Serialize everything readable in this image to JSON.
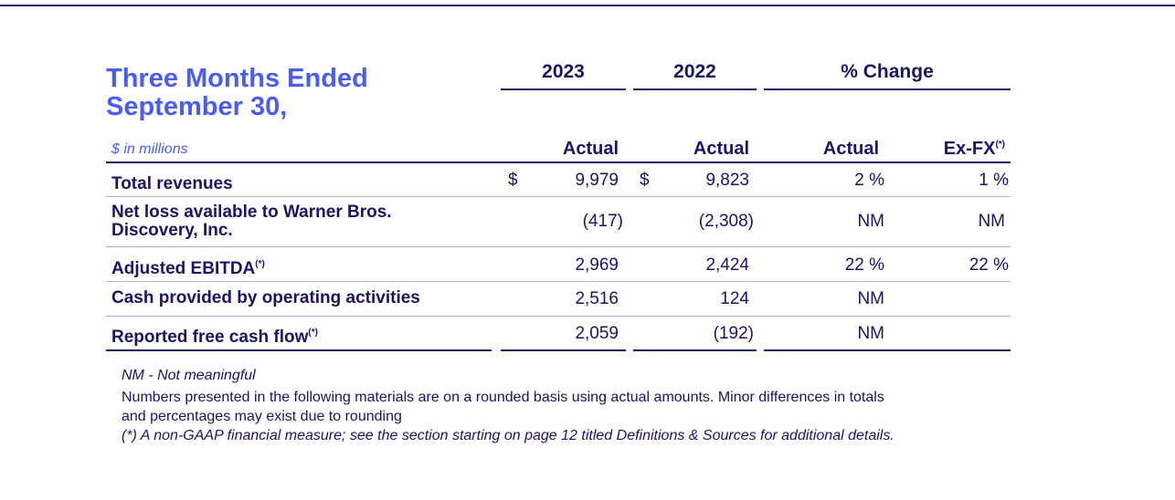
{
  "title": "Three Months Ended September 30,",
  "headers": {
    "y2023": "2023",
    "y2022": "2022",
    "pct_change": "% Change"
  },
  "units_note": "$ in millions",
  "columns": {
    "actual_2023": "Actual",
    "actual_2022": "Actual",
    "actual_pct": "Actual",
    "exfx": "Ex-FX",
    "exfx_mark": "(*)"
  },
  "rows": [
    {
      "label": "Total revenues",
      "mark": "",
      "dollar": "$",
      "v2023": "9,979",
      "v2022": "9,823",
      "pct": "2 %",
      "exfx": "1 %"
    },
    {
      "label": "Net loss available to Warner Bros. Discovery, Inc.",
      "mark": "",
      "dollar": "",
      "v2023": "(417)",
      "v2022": "(2,308)",
      "pct": "NM",
      "exfx": "NM"
    },
    {
      "label": "Adjusted EBITDA",
      "mark": "(*)",
      "dollar": "",
      "v2023": "2,969",
      "v2022": "2,424",
      "pct": "22 %",
      "exfx": "22 %"
    },
    {
      "label": "Cash provided by operating activities",
      "mark": "",
      "dollar": "",
      "v2023": "2,516",
      "v2022": "124",
      "pct": "NM",
      "exfx": ""
    },
    {
      "label": "Reported free cash flow",
      "mark": "(*)",
      "dollar": "",
      "v2023": "2,059",
      "v2022": "(192)",
      "pct": "NM",
      "exfx": ""
    }
  ],
  "footnotes": {
    "nm": "NM - Not meaningful",
    "rounding_1": "Numbers presented in the following materials are on a rounded basis using actual amounts. Minor differences in totals",
    "rounding_2": "and percentages may exist due to rounding",
    "nongaap": "(*) A non-GAAP financial measure; see the section starting on page 12 titled Definitions & Sources for additional details."
  }
}
